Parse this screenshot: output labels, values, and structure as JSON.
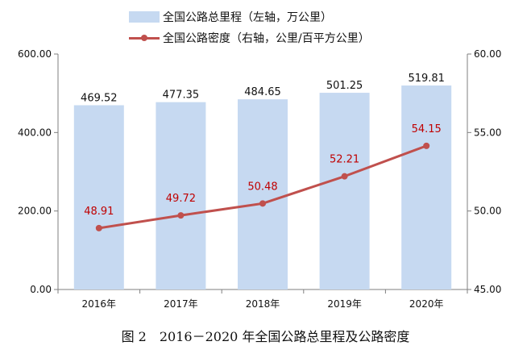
{
  "chart_data": {
    "type": "bar",
    "title": "",
    "categories": [
      "2016年",
      "2017年",
      "2018年",
      "2019年",
      "2020年"
    ],
    "series": [
      {
        "name": "全国公路总里程（左轴，万公里）",
        "type": "bar",
        "axis": "left",
        "values": [
          469.52,
          477.35,
          484.65,
          501.25,
          519.81
        ],
        "labels": [
          "469.52",
          "477.35",
          "484.65",
          "501.25",
          "519.81"
        ],
        "color": "#c6d9f1"
      },
      {
        "name": "全国公路密度（右轴，公里/百平方公里）",
        "type": "line",
        "axis": "right",
        "values": [
          48.91,
          49.72,
          50.48,
          52.21,
          54.15
        ],
        "labels": [
          "48.91",
          "49.72",
          "50.48",
          "52.21",
          "54.15"
        ],
        "color": "#c0504d",
        "label_color": "#c00000"
      }
    ],
    "y_left": {
      "ylim": [
        0,
        600
      ],
      "ticks": [
        "0.00",
        "200.00",
        "400.00",
        "600.00"
      ]
    },
    "y_right": {
      "ylim": [
        45,
        60
      ],
      "ticks": [
        "45.00",
        "50.00",
        "55.00",
        "60.00"
      ]
    },
    "grid": false,
    "legend_position": "top"
  },
  "caption": "图 2　2016－2020 年全国公路总里程及公路密度"
}
